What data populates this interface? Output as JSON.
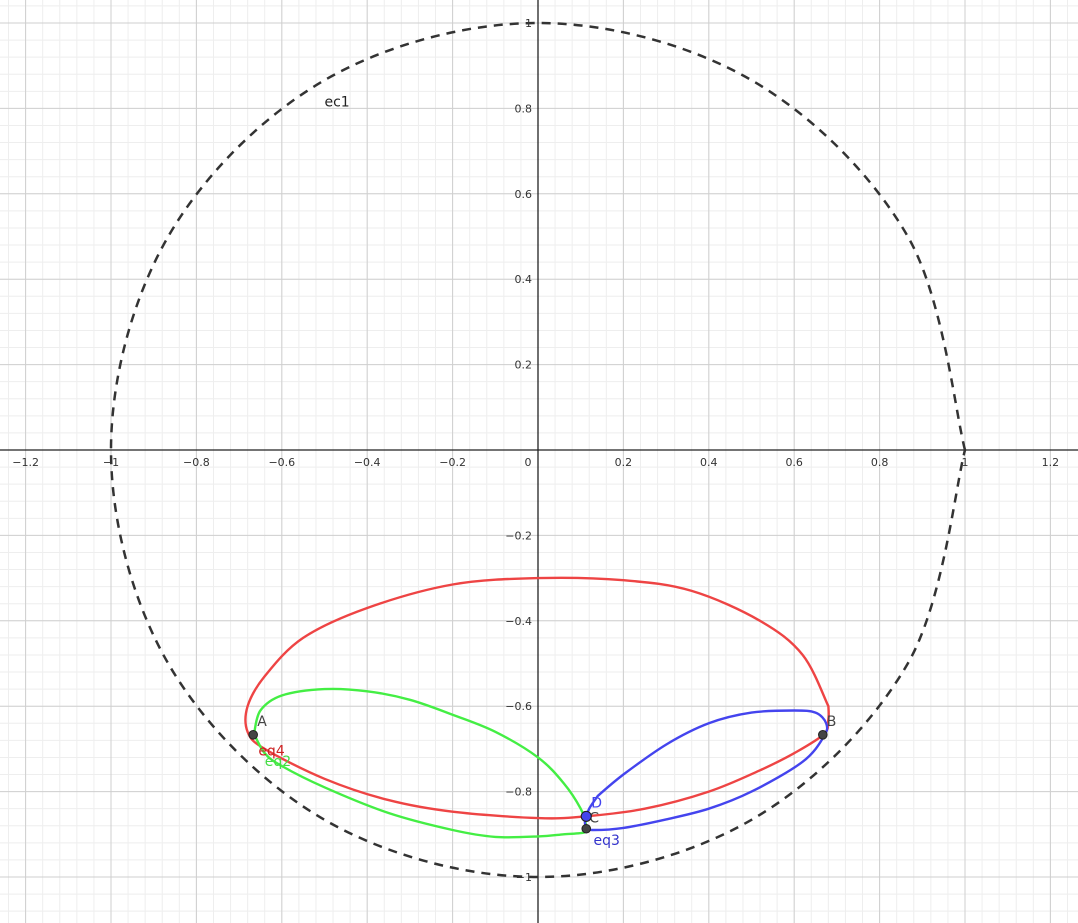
{
  "chart_data": {
    "type": "scatter",
    "xlim": [
      -1.26,
      1.26
    ],
    "ylim": [
      -1.1,
      1.06
    ],
    "major_grid_step": 0.2,
    "minor_grid_step": 0.04,
    "grid": true,
    "x_ticks": [
      -1.2,
      -1,
      -0.8,
      -0.6,
      -0.4,
      -0.2,
      0,
      0.2,
      0.4,
      0.6,
      0.8,
      1,
      1.2
    ],
    "x_tick_labels": [
      "−1.2",
      "−1",
      "−0.8",
      "−0.6",
      "−0.4",
      "−0.2",
      "0",
      "0.2",
      "0.4",
      "0.6",
      "0.8",
      "1",
      "1.2"
    ],
    "y_ticks": [
      -1,
      -0.8,
      -0.6,
      -0.4,
      -0.2,
      0.2,
      0.4,
      0.6,
      0.8,
      1
    ],
    "y_tick_labels": [
      "−1",
      "−0.8",
      "−0.6",
      "−0.4",
      "−0.2",
      "0.2",
      "0.4",
      "0.6",
      "0.8",
      "1"
    ],
    "curves": [
      {
        "name": "ec1",
        "color": "#333333",
        "dashed": true,
        "points": [
          [
            1,
            0
          ],
          [
            0.866,
            0.5
          ],
          [
            0.5,
            0.866
          ],
          [
            0,
            1
          ],
          [
            -0.5,
            0.866
          ],
          [
            -0.866,
            0.5
          ],
          [
            -1,
            0
          ],
          [
            -0.866,
            -0.5
          ],
          [
            -0.5,
            -0.866
          ],
          [
            0,
            -1
          ],
          [
            0.5,
            -0.866
          ],
          [
            0.866,
            -0.5
          ],
          [
            1,
            0
          ]
        ]
      },
      {
        "name": "eq4",
        "color": "#ee4444",
        "dashed": false,
        "points": [
          [
            0.68,
            -0.6
          ],
          [
            0.62,
            -0.48
          ],
          [
            0.52,
            -0.4
          ],
          [
            0.36,
            -0.33
          ],
          [
            0.2,
            -0.305
          ],
          [
            0,
            -0.3
          ],
          [
            -0.2,
            -0.315
          ],
          [
            -0.4,
            -0.37
          ],
          [
            -0.55,
            -0.44
          ],
          [
            -0.64,
            -0.53
          ],
          [
            -0.68,
            -0.6
          ],
          [
            -0.68,
            -0.66
          ],
          [
            -0.64,
            -0.7
          ],
          [
            -0.5,
            -0.77
          ],
          [
            -0.35,
            -0.82
          ],
          [
            -0.2,
            -0.847
          ],
          [
            0,
            -0.862
          ],
          [
            0.11,
            -0.858
          ],
          [
            0.25,
            -0.84
          ],
          [
            0.4,
            -0.8
          ],
          [
            0.52,
            -0.75
          ],
          [
            0.6,
            -0.71
          ],
          [
            0.67,
            -0.665
          ],
          [
            0.68,
            -0.63
          ],
          [
            0.68,
            -0.6
          ]
        ]
      },
      {
        "name": "eq2",
        "color": "#44ee44",
        "dashed": false,
        "points": [
          [
            -0.665,
            -0.665
          ],
          [
            -0.65,
            -0.61
          ],
          [
            -0.6,
            -0.575
          ],
          [
            -0.5,
            -0.56
          ],
          [
            -0.4,
            -0.565
          ],
          [
            -0.3,
            -0.585
          ],
          [
            -0.2,
            -0.62
          ],
          [
            -0.1,
            -0.66
          ],
          [
            0,
            -0.72
          ],
          [
            0.06,
            -0.78
          ],
          [
            0.1,
            -0.84
          ],
          [
            0.113,
            -0.88
          ],
          [
            0.11,
            -0.895
          ],
          [
            0.06,
            -0.9
          ],
          [
            0,
            -0.905
          ],
          [
            -0.1,
            -0.906
          ],
          [
            -0.2,
            -0.89
          ],
          [
            -0.35,
            -0.85
          ],
          [
            -0.5,
            -0.79
          ],
          [
            -0.6,
            -0.74
          ],
          [
            -0.64,
            -0.71
          ],
          [
            -0.665,
            -0.665
          ]
        ]
      },
      {
        "name": "eq3",
        "color": "#4444ee",
        "dashed": false,
        "points": [
          [
            0.14,
            -0.81
          ],
          [
            0.2,
            -0.76
          ],
          [
            0.3,
            -0.69
          ],
          [
            0.4,
            -0.64
          ],
          [
            0.5,
            -0.615
          ],
          [
            0.6,
            -0.61
          ],
          [
            0.65,
            -0.615
          ],
          [
            0.675,
            -0.64
          ],
          [
            0.67,
            -0.67
          ],
          [
            0.62,
            -0.73
          ],
          [
            0.5,
            -0.8
          ],
          [
            0.4,
            -0.84
          ],
          [
            0.3,
            -0.865
          ],
          [
            0.2,
            -0.885
          ],
          [
            0.13,
            -0.89
          ],
          [
            0.115,
            -0.885
          ],
          [
            0.11,
            -0.87
          ],
          [
            0.12,
            -0.84
          ],
          [
            0.14,
            -0.81
          ]
        ]
      }
    ],
    "points": [
      {
        "name": "A",
        "x": -0.667,
        "y": -0.667,
        "fill": "#444444",
        "label_color": "#444444"
      },
      {
        "name": "B",
        "x": 0.667,
        "y": -0.667,
        "fill": "#444444",
        "label_color": "#444444"
      },
      {
        "name": "C",
        "x": 0.113,
        "y": -0.858,
        "fill": "#4444ee",
        "label_color": "#444444"
      },
      {
        "name": "D",
        "x": 0.113,
        "y": -0.858,
        "fill": "#4444ee",
        "label_color": "#4444ee"
      },
      {
        "name": "",
        "x": 0.113,
        "y": -0.887,
        "fill": "#444444",
        "label_color": "#444444"
      }
    ],
    "labels": [
      {
        "text": "ec1",
        "x": -0.5,
        "y": 0.805,
        "color": "#222222"
      },
      {
        "text": "eq4",
        "x": -0.655,
        "y": -0.715,
        "color": "#cc2222"
      },
      {
        "text": "eq2",
        "x": -0.64,
        "y": -0.74,
        "color": "#44dd44"
      },
      {
        "text": "eq3",
        "x": 0.13,
        "y": -0.925,
        "color": "#3333cc"
      }
    ]
  }
}
